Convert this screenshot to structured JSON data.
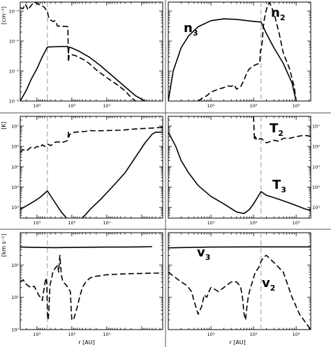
{
  "figure": {
    "row_units": [
      "[cm⁻³]",
      "[K]",
      "[km s⁻¹]"
    ],
    "xlabel": "r [AU]"
  },
  "chart_data": [
    {
      "type": "line",
      "id": "p1",
      "row": 0,
      "col": 0,
      "xscale": "log",
      "xreversed": true,
      "xlim": [
        3000,
        0.25
      ],
      "yscale": "log",
      "ylim": [
        1e-06,
        0.002
      ],
      "xticks": [
        {
          "v": 1000,
          "label": "10³"
        },
        {
          "v": 100,
          "label": "10²"
        },
        {
          "v": 10,
          "label": "10¹"
        }
      ],
      "yticks": [
        {
          "v": 0.001,
          "label": "10⁻³"
        },
        {
          "v": 0.0001,
          "label": "10⁻⁴"
        },
        {
          "v": 1e-05,
          "label": "10⁻⁵"
        },
        {
          "v": 1e-06,
          "label": "10⁻⁶"
        }
      ],
      "vline": 500,
      "series": [
        {
          "style": "solid",
          "x": [
            3000,
            2000,
            1500,
            1000,
            700,
            500,
            300,
            200,
            130,
            125,
            120,
            115,
            100,
            60,
            30,
            15,
            7,
            3,
            1.5,
            0.8
          ],
          "y": [
            1e-06,
            2.3e-06,
            5e-06,
            1.2e-05,
            3e-05,
            6.3e-05,
            6.5e-05,
            6.6e-05,
            6.6e-05,
            4e-05,
            6e-05,
            6.2e-05,
            5.9e-05,
            4.5e-05,
            2.8e-05,
            1.5e-05,
            7e-06,
            3e-06,
            1.5e-06,
            1e-06
          ]
        },
        {
          "style": "dashed",
          "x": [
            3000,
            2500,
            2200,
            2000,
            1800,
            1500,
            1200,
            1000,
            800,
            700,
            600,
            500,
            450,
            400,
            350,
            300,
            280,
            260,
            240,
            230,
            200,
            150,
            130,
            125,
            120,
            115,
            100,
            80,
            60,
            40,
            30,
            20,
            10,
            5,
            3,
            2,
            1.5,
            1.2
          ],
          "y": [
            0.0013,
            0.0012,
            0.0017,
            0.0015,
            0.0011,
            0.0015,
            0.002,
            0.0018,
            0.0016,
            0.0015,
            0.0013,
            0.00095,
            0.00055,
            0.0005,
            0.00045,
            0.00048,
            0.00043,
            0.00032,
            0.00031,
            0.00032,
            0.00031,
            0.00031,
            0.0003,
            2e-05,
            3.2e-05,
            3.5e-05,
            3.5e-05,
            3.3e-05,
            2.8e-05,
            2.2e-05,
            1.7e-05,
            1.1e-05,
            6e-06,
            3.5e-06,
            2.2e-06,
            1.3e-06,
            1e-06,
            1e-06
          ]
        }
      ]
    },
    {
      "type": "line",
      "id": "p2",
      "row": 0,
      "col": 1,
      "xscale": "log",
      "xreversed": false,
      "xlim": [
        1,
        2200
      ],
      "yscale": "log",
      "ylim": [
        1e-06,
        0.002
      ],
      "xticks": [
        {
          "v": 10,
          "label": "10¹"
        },
        {
          "v": 100,
          "label": "10²"
        },
        {
          "v": 1000,
          "label": "10³"
        }
      ],
      "yticks": [
        {
          "v": 0.001,
          "label": ""
        },
        {
          "v": 0.0001,
          "label": ""
        },
        {
          "v": 1e-05,
          "label": ""
        },
        {
          "v": 1e-06,
          "label": ""
        }
      ],
      "vline": 150,
      "series": [
        {
          "style": "solid",
          "x": [
            1,
            1.3,
            2,
            3,
            5,
            10,
            20,
            40,
            80,
            150,
            200,
            300,
            500,
            800,
            1000
          ],
          "y": [
            1e-06,
            1e-05,
            6e-05,
            0.00015,
            0.0003,
            0.00048,
            0.00055,
            0.00053,
            0.00047,
            0.00043,
            0.00018,
            6e-05,
            1.8e-05,
            4e-06,
            1e-06
          ]
        },
        {
          "style": "dashed",
          "x": [
            5,
            6,
            8,
            10,
            12,
            15,
            20,
            25,
            30,
            35,
            40,
            50,
            60,
            70,
            80,
            100,
            120,
            140,
            145,
            150,
            160,
            170,
            180,
            200,
            220,
            240,
            260,
            300,
            400,
            500,
            700,
            900,
            1000
          ],
          "y": [
            1e-06,
            1.2e-06,
            1.5e-06,
            2e-06,
            2.2e-06,
            2.5e-06,
            2.8e-06,
            3.2e-06,
            3.1e-06,
            3.5e-06,
            2.5e-06,
            3e-06,
            5e-06,
            9e-06,
            1.2e-05,
            1.5e-05,
            1.7e-05,
            1.8e-05,
            5e-05,
            5e-05,
            9e-05,
            0.0003,
            0.00055,
            0.0011,
            0.0017,
            0.0019,
            0.0014,
            0.0009,
            0.00018,
            4e-05,
            1.2e-05,
            3e-06,
            1e-06
          ]
        }
      ]
    },
    {
      "type": "line",
      "id": "p3",
      "row": 1,
      "col": 0,
      "xscale": "log",
      "xreversed": true,
      "xlim": [
        3000,
        0.25
      ],
      "yscale": "log",
      "ylim": [
        300,
        30000000.0
      ],
      "xticks": [
        {
          "v": 1000,
          "label": "10³"
        },
        {
          "v": 100,
          "label": "10²"
        },
        {
          "v": 10,
          "label": "10¹"
        }
      ],
      "yticks": [
        {
          "v": 10000000,
          "label": "10⁷"
        },
        {
          "v": 1000000,
          "label": "10⁶"
        },
        {
          "v": 100000,
          "label": "10⁵"
        },
        {
          "v": 10000,
          "label": "10⁴"
        },
        {
          "v": 1000,
          "label": "10³"
        }
      ],
      "vline": 500,
      "series": [
        {
          "style": "solid",
          "x": [
            3000,
            2000,
            1200,
            800,
            500,
            300,
            200,
            130,
            100,
            80,
            50,
            30,
            15,
            7,
            3,
            1.5,
            0.8,
            0.5,
            0.4,
            0.3,
            0.25
          ],
          "y": [
            800,
            1200,
            2000,
            3200,
            6500,
            1700,
            600,
            250,
            170,
            180,
            300,
            800,
            2500,
            10000,
            50000,
            300000,
            1500000,
            4000000,
            5000000,
            5000000,
            5000000
          ]
        },
        {
          "style": "dashed",
          "x": [
            3000,
            2500,
            2000,
            1500,
            1200,
            1000,
            800,
            700,
            600,
            500,
            400,
            300,
            250,
            200,
            150,
            130,
            125,
            120,
            115,
            110,
            100,
            80,
            60,
            40,
            30,
            20,
            10,
            5,
            3,
            2,
            1,
            0.5,
            0.3,
            0.25
          ],
          "y": [
            500000,
            700000,
            600000,
            900000,
            800000,
            1000000,
            900000,
            1200000,
            1000000,
            1300000,
            1100000,
            1600000,
            1700000,
            1500000,
            1800000,
            2000000,
            5000000,
            3000000,
            4000000,
            4000000,
            4500000,
            5000000,
            5200000,
            5500000,
            6000000,
            5800000,
            6000000,
            6200000,
            6500000,
            7000000,
            7500000,
            8000000,
            8500000,
            9000000
          ]
        }
      ]
    },
    {
      "type": "line",
      "id": "p4",
      "row": 1,
      "col": 1,
      "xscale": "log",
      "xreversed": false,
      "xlim": [
        1,
        2200
      ],
      "yscale": "log",
      "ylim": [
        300,
        30000000.0
      ],
      "xticks": [
        {
          "v": 10,
          "label": "10¹"
        },
        {
          "v": 100,
          "label": "10²"
        },
        {
          "v": 1000,
          "label": "10³"
        }
      ],
      "yticks": [
        {
          "v": 10000000,
          "label": "10⁷"
        },
        {
          "v": 1000000,
          "label": "10⁶"
        },
        {
          "v": 100000,
          "label": "10⁵"
        },
        {
          "v": 10000,
          "label": "10⁴"
        },
        {
          "v": 1000,
          "label": "10³"
        }
      ],
      "yaxis_side": "right",
      "vline": 150,
      "series": [
        {
          "style": "solid",
          "x": [
            1,
            1.5,
            2,
            3,
            5,
            10,
            20,
            40,
            60,
            80,
            100,
            150,
            200,
            400,
            800,
            1500,
            2200
          ],
          "y": [
            5000000,
            1000000,
            200000,
            50000,
            12000,
            3500,
            1500,
            600,
            500,
            800,
            1500,
            6000,
            4000,
            2500,
            1500,
            900,
            700
          ]
        },
        {
          "style": "dashed",
          "x": [
            100,
            105,
            110,
            120,
            150,
            200,
            300,
            400,
            500,
            700,
            1000,
            1500,
            2200
          ],
          "y": [
            30000000,
            2000000,
            3000000,
            2000000,
            2500000,
            1500000,
            2000000,
            1800000,
            2500000,
            2500000,
            3000000,
            3500000,
            3200000
          ]
        }
      ]
    },
    {
      "type": "line",
      "id": "p5",
      "row": 2,
      "col": 0,
      "xscale": "log",
      "xreversed": true,
      "xlim": [
        3000,
        0.25
      ],
      "yscale": "log",
      "ylim": [
        1,
        1000
      ],
      "xticks": [
        {
          "v": 1000,
          "label": "10³"
        },
        {
          "v": 100,
          "label": "10²"
        },
        {
          "v": 10,
          "label": "10¹"
        }
      ],
      "yticks": [
        {
          "v": 100,
          "label": "10²"
        },
        {
          "v": 10,
          "label": "10¹"
        },
        {
          "v": 1,
          "label": "10⁰"
        }
      ],
      "vline": 500,
      "series": [
        {
          "style": "solid",
          "x": [
            3000,
            1000,
            300,
            100,
            30,
            10,
            3,
            1,
            0.5
          ],
          "y": [
            360,
            350,
            345,
            350,
            355,
            360,
            360,
            365,
            370
          ]
        },
        {
          "style": "dashed",
          "x": [
            3000,
            2500,
            2000,
            1500,
            1200,
            1000,
            900,
            800,
            700,
            600,
            550,
            520,
            500,
            480,
            460,
            420,
            400,
            350,
            300,
            250,
            240,
            220,
            200,
            180,
            150,
            130,
            110,
            105,
            100,
            95,
            90,
            80,
            70,
            60,
            50,
            40,
            30,
            20,
            10,
            5,
            3,
            2,
            1,
            0.5,
            0.25
          ],
          "y": [
            30,
            35,
            25,
            20,
            22,
            15,
            12,
            10,
            8,
            25,
            40,
            25,
            3,
            2,
            3,
            25,
            30,
            60,
            80,
            100,
            60,
            200,
            50,
            30,
            25,
            20,
            15,
            5,
            2,
            2,
            2,
            3,
            5,
            10,
            20,
            30,
            40,
            45,
            50,
            52,
            53,
            54,
            55,
            56,
            56
          ]
        }
      ]
    },
    {
      "type": "line",
      "id": "p6",
      "row": 2,
      "col": 1,
      "xscale": "log",
      "xreversed": false,
      "xlim": [
        1,
        2200
      ],
      "yscale": "log",
      "ylim": [
        1,
        1000
      ],
      "xticks": [
        {
          "v": 10,
          "label": "10¹"
        },
        {
          "v": 100,
          "label": "10²"
        },
        {
          "v": 1000,
          "label": "10³"
        }
      ],
      "yticks": [
        {
          "v": 100,
          "label": ""
        },
        {
          "v": 10,
          "label": ""
        },
        {
          "v": 1,
          "label": ""
        }
      ],
      "vline": 150,
      "series": [
        {
          "style": "solid",
          "x": [
            1,
            10,
            100,
            1000,
            2200
          ],
          "y": [
            340,
            360,
            365,
            365,
            365
          ]
        },
        {
          "style": "dashed",
          "x": [
            1,
            1.5,
            2,
            2.5,
            3,
            3.5,
            4,
            5,
            6,
            7,
            8,
            9,
            10,
            12,
            15,
            20,
            25,
            30,
            35,
            40,
            45,
            50,
            55,
            60,
            65,
            70,
            75,
            80,
            90,
            100,
            110,
            120,
            130,
            140,
            150,
            160,
            170,
            180,
            200,
            300,
            500,
            800,
            1200,
            2200
          ],
          "y": [
            60,
            40,
            30,
            25,
            20,
            15,
            8,
            3,
            5,
            12,
            10,
            15,
            20,
            18,
            15,
            20,
            25,
            30,
            30,
            30,
            25,
            20,
            10,
            3,
            2,
            5,
            10,
            15,
            25,
            40,
            60,
            70,
            80,
            100,
            130,
            150,
            170,
            180,
            200,
            120,
            60,
            10,
            3,
            1
          ]
        }
      ]
    }
  ],
  "labels": [
    {
      "panel": 1,
      "text": "n",
      "sub": "3"
    },
    {
      "panel": 1,
      "text": "n",
      "sub": "2"
    },
    {
      "panel": 3,
      "text": "T",
      "sub": "2"
    },
    {
      "panel": 3,
      "text": "T",
      "sub": "3"
    },
    {
      "panel": 5,
      "text": "v",
      "sub": "3"
    },
    {
      "panel": 5,
      "text": "v",
      "sub": "2"
    }
  ]
}
